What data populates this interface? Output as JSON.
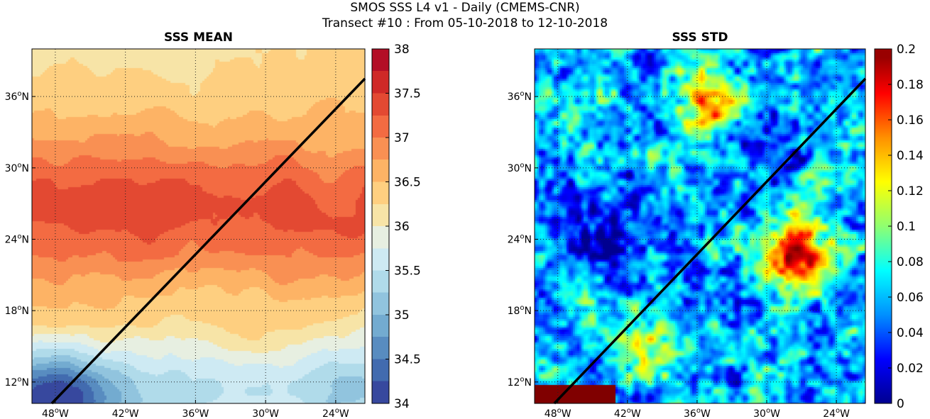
{
  "figure": {
    "title_line1": "SMOS SSS L4 v1 - Daily (CMEMS-CNR)",
    "title_line2": "Transect #10 : From 05-10-2018 to 12-10-2018"
  },
  "chart_data": [
    {
      "type": "heatmap",
      "title": "SSS MEAN",
      "x_tick_labels": [
        "48°W",
        "42°W",
        "36°W",
        "30°W",
        "24°W"
      ],
      "x_ticks": [
        -48,
        -42,
        -36,
        -30,
        -24
      ],
      "y_tick_labels": [
        "12°N",
        "18°N",
        "24°N",
        "30°N",
        "36°N"
      ],
      "y_ticks": [
        12,
        18,
        24,
        30,
        36
      ],
      "xlim": [
        -50,
        -21.5
      ],
      "ylim": [
        10.2,
        40
      ],
      "grid": true,
      "colormap": "red-yellow-blue (reversed)",
      "colorbar": {
        "min": 34,
        "max": 38,
        "tick_values": [
          34,
          34.5,
          35,
          35.5,
          36,
          36.5,
          37,
          37.5,
          38
        ],
        "tick_labels": [
          "34",
          "34.5",
          "35",
          "35.5",
          "36",
          "36.5",
          "37",
          "37.5",
          "38"
        ],
        "colors": [
          "#313695",
          "#4575b4",
          "#74add1",
          "#abd9e9",
          "#e0f3f8",
          "#fee090",
          "#fdae61",
          "#f46d43",
          "#d73027",
          "#a50026"
        ]
      },
      "transect": {
        "lon": [
          -48.3,
          -21.5
        ],
        "lat": [
          10.2,
          37.5
        ]
      },
      "field_summary": "Saltiest water (~37.3) in a band between 20°N and 32°N; fresher water (~34.5-35.5) in the south-west corner and along the southern edge; ~36 in the north."
    },
    {
      "type": "heatmap",
      "title": "SSS STD",
      "x_tick_labels": [
        "48°W",
        "42°W",
        "36°W",
        "30°W",
        "24°W"
      ],
      "x_ticks": [
        -48,
        -42,
        -36,
        -30,
        -24
      ],
      "y_tick_labels": [
        "12°N",
        "18°N",
        "24°N",
        "30°N",
        "36°N"
      ],
      "y_ticks": [
        12,
        18,
        24,
        30,
        36
      ],
      "xlim": [
        -50,
        -21.5
      ],
      "ylim": [
        10.2,
        40
      ],
      "grid": true,
      "colormap": "jet",
      "colorbar": {
        "min": 0,
        "max": 0.2,
        "tick_values": [
          0,
          0.02,
          0.04,
          0.06,
          0.08,
          0.1,
          0.12,
          0.14,
          0.16,
          0.18,
          0.2
        ],
        "tick_labels": [
          "0",
          "0.02",
          "0.04",
          "0.06",
          "0.08",
          "0.1",
          "0.12",
          "0.14",
          "0.16",
          "0.18",
          "0.2"
        ],
        "colors": [
          "#000090",
          "#0000ff",
          "#0090ff",
          "#00ffff",
          "#90ff70",
          "#ffff00",
          "#ff9000",
          "#ff0000",
          "#800000"
        ]
      },
      "transect": {
        "lon": [
          -48.3,
          -21.5
        ],
        "lat": [
          10.2,
          37.5
        ]
      },
      "field_summary": "Patchy variability mostly 0.04-0.1; low-variability (blue) patches near 25°N 44°W and 32°N 30°W; high (dark red, ~0.2) patches near 23°N 28°W, 35°N 35°W and the south-west corner."
    }
  ]
}
